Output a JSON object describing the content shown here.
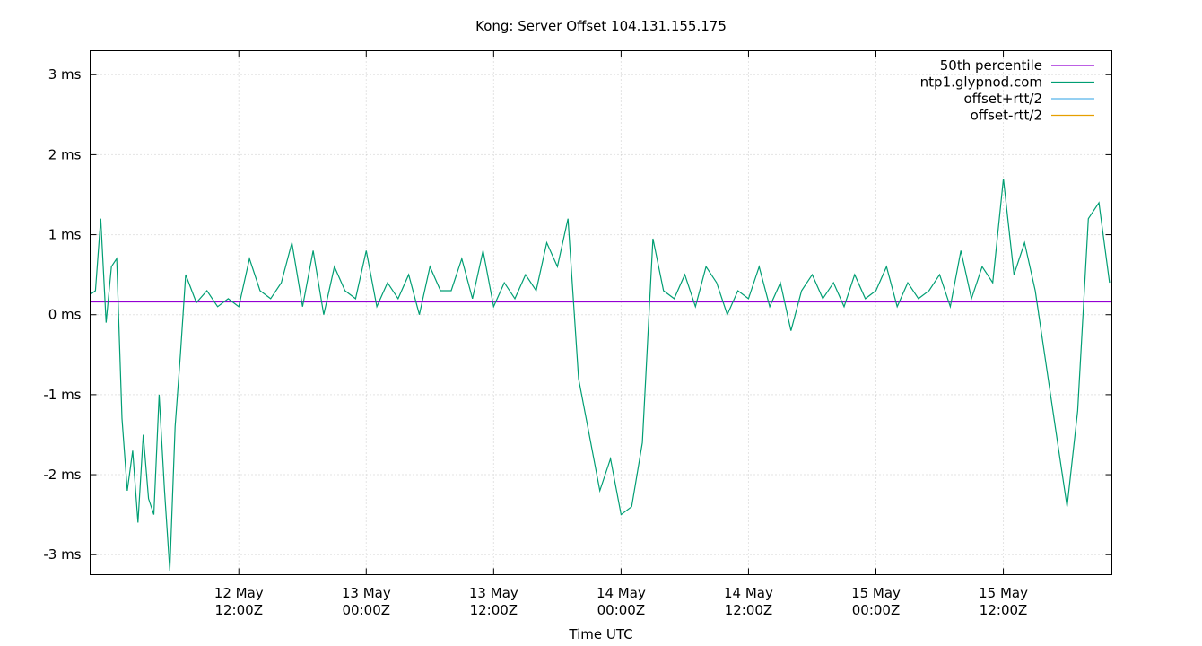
{
  "chart_data": {
    "type": "line",
    "title": "Kong: Server Offset 104.131.155.175",
    "xlabel": "Time UTC",
    "ylabel": "",
    "grid": true,
    "legend_position": "top-right",
    "ylim": [
      -3.25,
      3.3
    ],
    "yticks": [
      {
        "value": 3,
        "label": "3 ms"
      },
      {
        "value": 2,
        "label": "2 ms"
      },
      {
        "value": 1,
        "label": "1 ms"
      },
      {
        "value": 0,
        "label": "0 ms"
      },
      {
        "value": -1,
        "label": "-1 ms"
      },
      {
        "value": -2,
        "label": "-2 ms"
      },
      {
        "value": -3,
        "label": "-3 ms"
      }
    ],
    "xlim": [
      "2024-05-11T22:00Z",
      "2024-05-15T22:13Z"
    ],
    "xticks": [
      {
        "value": "2024-05-12T12:00Z",
        "line1": "12 May",
        "line2": "12:00Z"
      },
      {
        "value": "2024-05-13T00:00Z",
        "line1": "13 May",
        "line2": "00:00Z"
      },
      {
        "value": "2024-05-13T12:00Z",
        "line1": "13 May",
        "line2": "12:00Z"
      },
      {
        "value": "2024-05-14T00:00Z",
        "line1": "14 May",
        "line2": "00:00Z"
      },
      {
        "value": "2024-05-14T12:00Z",
        "line1": "14 May",
        "line2": "12:00Z"
      },
      {
        "value": "2024-05-15T00:00Z",
        "line1": "15 May",
        "line2": "00:00Z"
      },
      {
        "value": "2024-05-15T12:00Z",
        "line1": "15 May",
        "line2": "12:00Z"
      }
    ],
    "series": [
      {
        "name": "50th percentile",
        "color": "#9400d3",
        "x": [
          "2024-05-11T22:00Z",
          "2024-05-15T22:13Z"
        ],
        "y": [
          0.16,
          0.16
        ]
      },
      {
        "name": "ntp1.glypnod.com",
        "color": "#009e73",
        "x": [
          "2024-05-11T22:00Z",
          "2024-05-11T22:30Z",
          "2024-05-11T23:00Z",
          "2024-05-11T23:30Z",
          "2024-05-12T00:00Z",
          "2024-05-12T00:30Z",
          "2024-05-12T01:00Z",
          "2024-05-12T01:30Z",
          "2024-05-12T02:00Z",
          "2024-05-12T02:30Z",
          "2024-05-12T03:00Z",
          "2024-05-12T03:30Z",
          "2024-05-12T04:00Z",
          "2024-05-12T04:30Z",
          "2024-05-12T05:00Z",
          "2024-05-12T05:30Z",
          "2024-05-12T06:00Z",
          "2024-05-12T06:30Z",
          "2024-05-12T07:00Z",
          "2024-05-12T08:00Z",
          "2024-05-12T09:00Z",
          "2024-05-12T10:00Z",
          "2024-05-12T11:00Z",
          "2024-05-12T12:00Z",
          "2024-05-12T13:00Z",
          "2024-05-12T14:00Z",
          "2024-05-12T15:00Z",
          "2024-05-12T16:00Z",
          "2024-05-12T17:00Z",
          "2024-05-12T18:00Z",
          "2024-05-12T19:00Z",
          "2024-05-12T20:00Z",
          "2024-05-12T21:00Z",
          "2024-05-12T22:00Z",
          "2024-05-12T23:00Z",
          "2024-05-13T00:00Z",
          "2024-05-13T01:00Z",
          "2024-05-13T02:00Z",
          "2024-05-13T03:00Z",
          "2024-05-13T04:00Z",
          "2024-05-13T05:00Z",
          "2024-05-13T06:00Z",
          "2024-05-13T07:00Z",
          "2024-05-13T08:00Z",
          "2024-05-13T09:00Z",
          "2024-05-13T10:00Z",
          "2024-05-13T11:00Z",
          "2024-05-13T12:00Z",
          "2024-05-13T13:00Z",
          "2024-05-13T14:00Z",
          "2024-05-13T15:00Z",
          "2024-05-13T16:00Z",
          "2024-05-13T17:00Z",
          "2024-05-13T18:00Z",
          "2024-05-13T19:00Z",
          "2024-05-13T20:00Z",
          "2024-05-13T21:00Z",
          "2024-05-13T22:00Z",
          "2024-05-13T23:00Z",
          "2024-05-14T00:00Z",
          "2024-05-14T01:00Z",
          "2024-05-14T02:00Z",
          "2024-05-14T03:00Z",
          "2024-05-14T04:00Z",
          "2024-05-14T05:00Z",
          "2024-05-14T06:00Z",
          "2024-05-14T07:00Z",
          "2024-05-14T08:00Z",
          "2024-05-14T09:00Z",
          "2024-05-14T10:00Z",
          "2024-05-14T11:00Z",
          "2024-05-14T12:00Z",
          "2024-05-14T13:00Z",
          "2024-05-14T14:00Z",
          "2024-05-14T15:00Z",
          "2024-05-14T16:00Z",
          "2024-05-14T17:00Z",
          "2024-05-14T18:00Z",
          "2024-05-14T19:00Z",
          "2024-05-14T20:00Z",
          "2024-05-14T21:00Z",
          "2024-05-14T22:00Z",
          "2024-05-14T23:00Z",
          "2024-05-15T00:00Z",
          "2024-05-15T01:00Z",
          "2024-05-15T02:00Z",
          "2024-05-15T03:00Z",
          "2024-05-15T04:00Z",
          "2024-05-15T05:00Z",
          "2024-05-15T06:00Z",
          "2024-05-15T07:00Z",
          "2024-05-15T08:00Z",
          "2024-05-15T09:00Z",
          "2024-05-15T10:00Z",
          "2024-05-15T11:00Z",
          "2024-05-15T12:00Z",
          "2024-05-15T13:00Z",
          "2024-05-15T14:00Z",
          "2024-05-15T15:00Z",
          "2024-05-15T16:00Z",
          "2024-05-15T17:00Z",
          "2024-05-15T18:00Z",
          "2024-05-15T19:00Z",
          "2024-05-15T20:00Z",
          "2024-05-15T21:00Z",
          "2024-05-15T22:00Z"
        ],
        "y": [
          0.25,
          0.3,
          1.2,
          -0.1,
          0.6,
          0.7,
          -1.3,
          -2.2,
          -1.7,
          -2.6,
          -1.5,
          -2.3,
          -2.5,
          -1.0,
          -2.2,
          -3.2,
          -1.4,
          -0.5,
          0.5,
          0.15,
          0.3,
          0.1,
          0.2,
          0.1,
          0.7,
          0.3,
          0.2,
          0.4,
          0.9,
          0.1,
          0.8,
          0.0,
          0.6,
          0.3,
          0.2,
          0.8,
          0.1,
          0.4,
          0.2,
          0.5,
          0.0,
          0.6,
          0.3,
          0.3,
          0.7,
          0.2,
          0.8,
          0.1,
          0.4,
          0.2,
          0.5,
          0.3,
          0.9,
          0.6,
          1.2,
          -0.8,
          -1.5,
          -2.2,
          -1.8,
          -2.5,
          -2.4,
          -1.6,
          0.95,
          0.3,
          0.2,
          0.5,
          0.1,
          0.6,
          0.4,
          0.0,
          0.3,
          0.2,
          0.6,
          0.1,
          0.4,
          -0.2,
          0.3,
          0.5,
          0.2,
          0.4,
          0.1,
          0.5,
          0.2,
          0.3,
          0.6,
          0.1,
          0.4,
          0.2,
          0.3,
          0.5,
          0.1,
          0.8,
          0.2,
          0.6,
          0.4,
          1.7,
          0.5,
          0.9,
          0.3,
          -0.6,
          -1.5,
          -2.4,
          -1.2,
          1.2,
          1.4,
          0.4
        ]
      },
      {
        "name": "offset+rtt/2",
        "color": "#56b4e9"
      },
      {
        "name": "offset-rtt/2",
        "color": "#e69f00"
      }
    ]
  }
}
